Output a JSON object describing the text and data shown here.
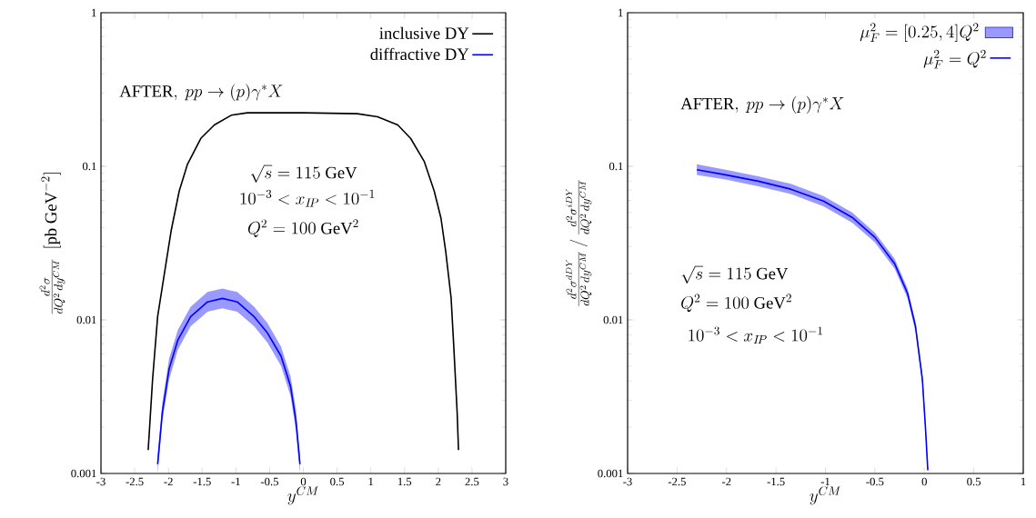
{
  "chart_data": [
    {
      "type": "line",
      "xlabel": "y^{CM}",
      "ylabel": "\\frac{d^2\\sigma}{dQ^2\\,dy^{CM}}\\ \\ [\\mathrm{pb\\ GeV}^{-2}]",
      "xlim": [
        -3,
        3
      ],
      "xticks": [
        -3,
        -2.5,
        -2,
        -1.5,
        -1,
        -0.5,
        0,
        0.5,
        1,
        1.5,
        2,
        2.5,
        3
      ],
      "ylim": [
        0.001,
        1
      ],
      "yticks": [
        0.001,
        0.01,
        0.1,
        1
      ],
      "log": "y",
      "legend": "top right",
      "marker": "none",
      "line_style": "solid",
      "annotations": [
        "\\mathrm{AFTER},\\ pp\\rightarrow(p)\\gamma^{*}X",
        "\\sqrt{s}=115\\ \\mathrm{GeV}",
        "10^{-3}<x_{I\\!P}<10^{-1}",
        "Q^2=100\\ \\mathrm{GeV}^2"
      ],
      "series": [
        {
          "name": "inclusive DY",
          "color": "#000000",
          "x": [
            -2.3,
            -2.235,
            -2.16,
            -2.06,
            -1.96,
            -1.84,
            -1.72,
            -1.52,
            -1.32,
            -1.07,
            -0.83,
            0.01,
            0.8,
            1.1,
            1.4,
            1.59,
            1.79,
            1.94,
            2.04,
            2.11,
            2.19,
            2.23,
            2.28,
            2.3
          ],
          "values": [
            0.00142,
            0.0041,
            0.0105,
            0.02,
            0.038,
            0.069,
            0.1025,
            0.152,
            0.186,
            0.215,
            0.223,
            0.223,
            0.22,
            0.21,
            0.186,
            0.152,
            0.108,
            0.069,
            0.046,
            0.028,
            0.014,
            0.0067,
            0.0025,
            0.00142
          ]
        },
        {
          "name": "diffractive DY",
          "color": "#0000ff",
          "x": [
            -2.16,
            -2.09,
            -1.99,
            -1.86,
            -1.67,
            -1.42,
            -1.2,
            -0.98,
            -0.73,
            -0.53,
            -0.33,
            -0.19,
            -0.11,
            -0.05
          ],
          "values": [
            0.00115,
            0.0025,
            0.0048,
            0.0074,
            0.0105,
            0.0131,
            0.0138,
            0.0131,
            0.0105,
            0.0082,
            0.0058,
            0.0037,
            0.0022,
            0.00115
          ],
          "lower": [
            0.001,
            0.0022,
            0.0041,
            0.0064,
            0.0091,
            0.0113,
            0.0119,
            0.0113,
            0.0091,
            0.0071,
            0.005,
            0.0032,
            0.0019,
            0.001
          ],
          "upper": [
            0.0013,
            0.0029,
            0.0056,
            0.0086,
            0.0122,
            0.0152,
            0.016,
            0.0152,
            0.0122,
            0.0095,
            0.0067,
            0.0043,
            0.0026,
            0.0013
          ]
        }
      ]
    },
    {
      "type": "line",
      "xlabel": "y^{CM}",
      "ylabel": "\\frac{d^2\\sigma^{dDY}}{dQ^2\\,dy^{CM}}\\,\\Big/\\,\\frac{d^2\\sigma^{iDY}}{dQ^2\\,dy^{CM}}",
      "xlim": [
        -3,
        1
      ],
      "xticks": [
        -3,
        -2.5,
        -2,
        -1.5,
        -1,
        -0.5,
        0,
        0.5,
        1
      ],
      "ylim": [
        0.001,
        1
      ],
      "yticks": [
        0.001,
        0.01,
        0.1,
        1
      ],
      "log": "y",
      "legend": "top right",
      "marker": "none",
      "line_style": "solid",
      "annotations": [
        "\\mu_F^2=[0.25,4]Q^2",
        "\\mathrm{AFTER},\\ pp\\rightarrow(p)\\gamma^{*}X",
        "\\sqrt{s}=115\\ \\mathrm{GeV}",
        "Q^2=100\\ \\mathrm{GeV}^2",
        "10^{-3}<x_{I\\!P}<10^{-1}"
      ],
      "series": [
        {
          "name": "\\mu_F^2=Q^2",
          "type": "line",
          "color": "#0000ff",
          "x": [
            -2.3,
            -2.01,
            -1.68,
            -1.35,
            -1.02,
            -0.73,
            -0.5,
            -0.3,
            -0.17,
            -0.09,
            -0.02,
            0.012,
            0.035
          ],
          "values": [
            0.095,
            0.088,
            0.08,
            0.071,
            0.0594,
            0.0465,
            0.0345,
            0.0232,
            0.0149,
            0.0091,
            0.0041,
            0.00195,
            0.00105
          ],
          "lower": [
            0.088,
            0.082,
            0.074,
            0.066,
            0.055,
            0.043,
            0.032,
            0.0215,
            0.0138,
            0.0084,
            0.0038,
            0.0018,
            0.001
          ],
          "upper": [
            0.103,
            0.095,
            0.086,
            0.077,
            0.064,
            0.05,
            0.037,
            0.025,
            0.016,
            0.0098,
            0.0044,
            0.0021,
            0.0011
          ]
        }
      ]
    }
  ]
}
